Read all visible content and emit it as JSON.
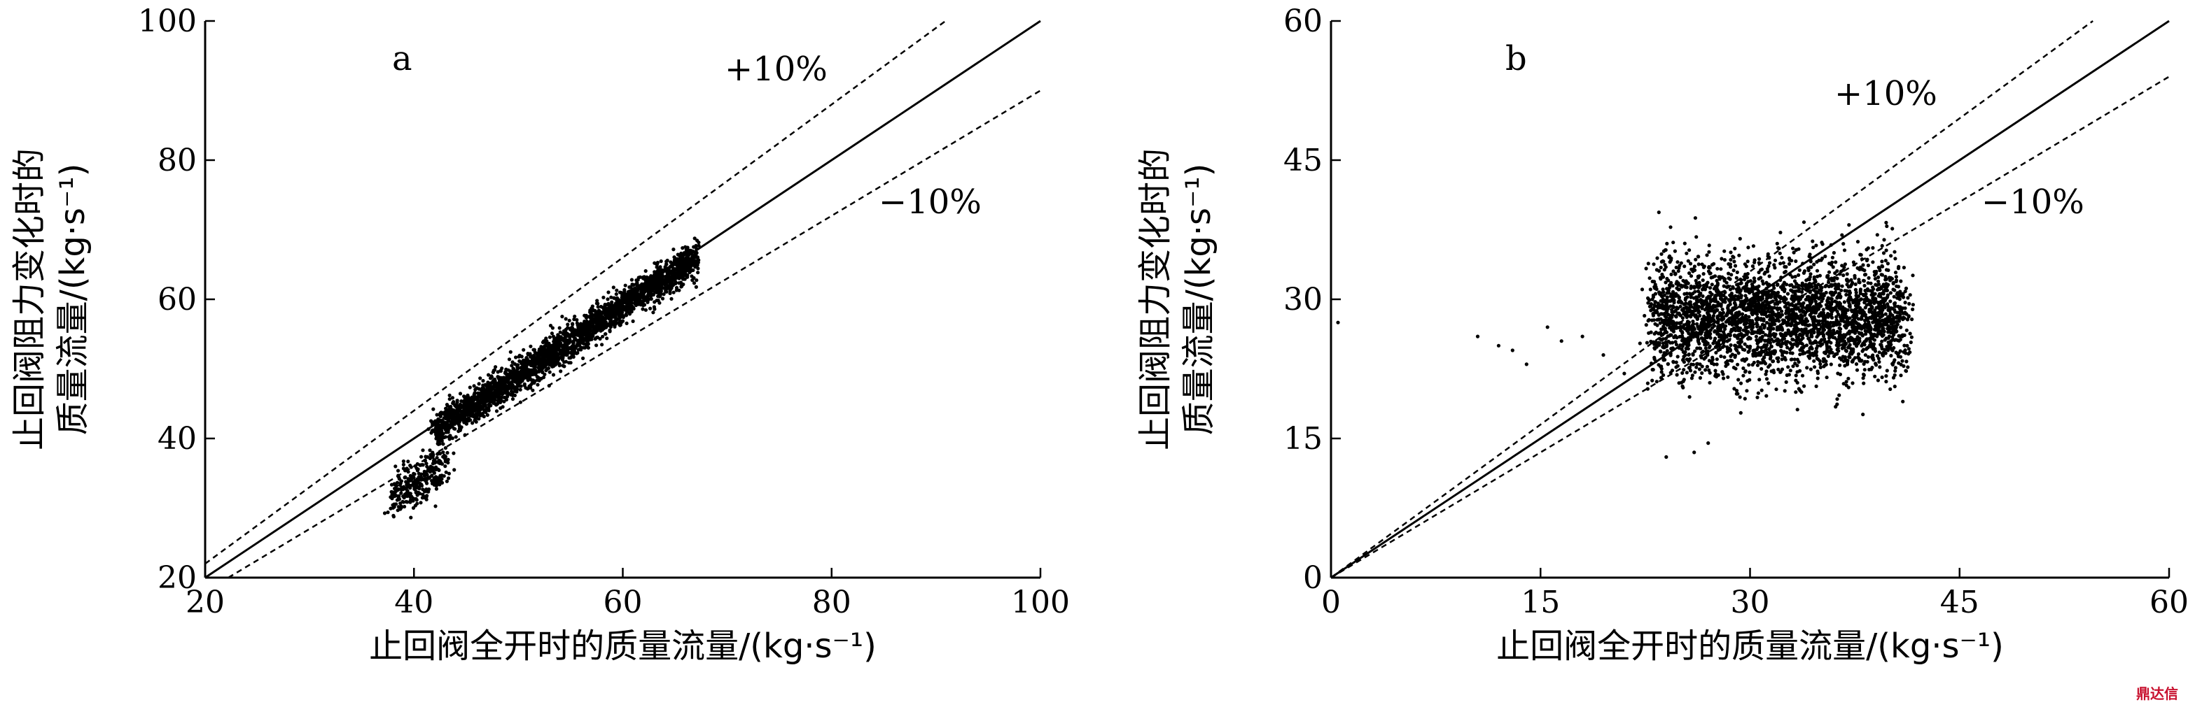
{
  "chart_data": [
    {
      "type": "scatter",
      "panel_label": "a",
      "xlabel": "止回阀全开时的质量流量/(kg·s⁻¹)",
      "ylabel_lines": [
        "止回阀阻力变化时的",
        "质量流量/(kg·s⁻¹)"
      ],
      "xlim": [
        20,
        100
      ],
      "ylim": [
        20,
        100
      ],
      "xticks": [
        20,
        40,
        60,
        80,
        100
      ],
      "yticks": [
        20,
        40,
        60,
        80,
        100
      ],
      "reference_lines": [
        {
          "label": "",
          "slope": 1.0,
          "style": "solid"
        },
        {
          "label": "+10%",
          "slope": 1.1,
          "style": "dashed"
        },
        {
          "label": "−10%",
          "slope": 0.9,
          "style": "dashed"
        }
      ],
      "clusters": [
        {
          "x_range": [
            38,
            43
          ],
          "y_center_offset": -6.5,
          "spread": 1.6,
          "count": 320
        },
        {
          "x_range": [
            42,
            67
          ],
          "y_center_offset": -1.0,
          "spread": 1.2,
          "count": 2600
        }
      ]
    },
    {
      "type": "scatter",
      "panel_label": "b",
      "xlabel": "止回阀全开时的质量流量/(kg·s⁻¹)",
      "ylabel_lines": [
        "止回阀阻力变化时的",
        "质量流量/(kg·s⁻¹)"
      ],
      "xlim": [
        0,
        60
      ],
      "ylim": [
        0,
        60
      ],
      "xticks": [
        0,
        15,
        30,
        45,
        60
      ],
      "yticks": [
        0,
        15,
        30,
        45,
        60
      ],
      "reference_lines": [
        {
          "label": "",
          "slope": 1.0,
          "style": "solid"
        },
        {
          "label": "+10%",
          "slope": 1.1,
          "style": "dashed"
        },
        {
          "label": "−10%",
          "slope": 0.9,
          "style": "dashed"
        }
      ],
      "points": [
        [
          0.5,
          27.5
        ],
        [
          10.5,
          26
        ],
        [
          12,
          25
        ],
        [
          13,
          24.5
        ],
        [
          14,
          23
        ],
        [
          15.5,
          27
        ],
        [
          16.5,
          25.5
        ],
        [
          18,
          26
        ],
        [
          19.5,
          24
        ],
        [
          21,
          22
        ],
        [
          24,
          13
        ],
        [
          26,
          13.5
        ],
        [
          27,
          14.5
        ]
      ],
      "clusters": [
        {
          "x_range": [
            23,
            41
          ],
          "y_center": 28,
          "spread": 3.2,
          "count": 3200
        }
      ]
    }
  ],
  "watermark": "鼎达信"
}
